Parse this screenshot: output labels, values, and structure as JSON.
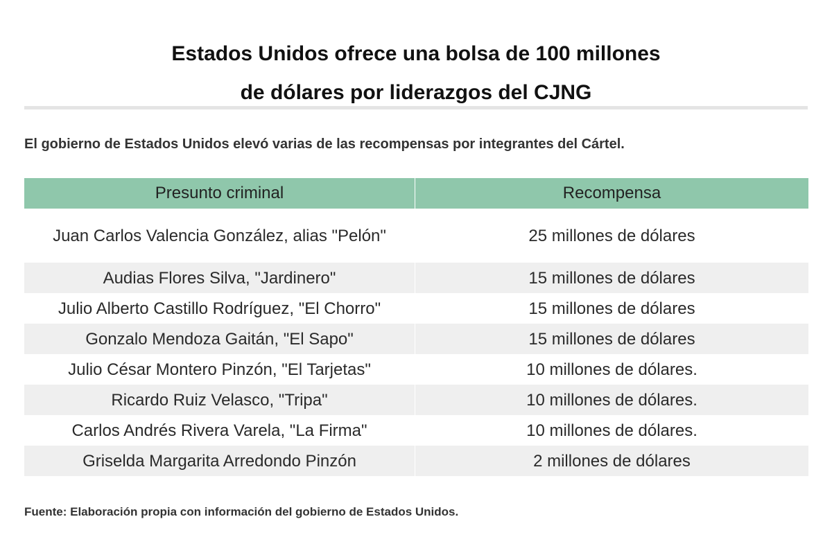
{
  "title": {
    "line1": "Estados Unidos ofrece una bolsa de 100 millones",
    "line2": "de dólares por liderazgos del CJNG"
  },
  "subtitle": "El gobierno de Estados Unidos elevó varias de las recompensas por integrantes del Cártel.",
  "table": {
    "headers": [
      "Presunto criminal",
      "Recompensa"
    ],
    "rows": [
      {
        "name": "Juan Carlos Valencia González, alias \"Pelón\"",
        "reward": "25 millones de dólares"
      },
      {
        "name": "Audias Flores Silva, \"Jardinero\"",
        "reward": "15 millones de dólares"
      },
      {
        "name": "Julio Alberto Castillo Rodríguez, \"El Chorro\"",
        "reward": "15 millones de dólares"
      },
      {
        "name": "Gonzalo Mendoza Gaitán, \"El Sapo\"",
        "reward": "15 millones de dólares"
      },
      {
        "name": "Julio César Montero Pinzón, \"El Tarjetas\"",
        "reward": "10 millones de dólares."
      },
      {
        "name": "Ricardo Ruiz Velasco, \"Tripa\"",
        "reward": "10 millones de dólares."
      },
      {
        "name": "Carlos Andrés Rivera Varela, \"La Firma\"",
        "reward": "10 millones de dólares."
      },
      {
        "name": "Griselda Margarita Arredondo Pinzón",
        "reward": "2 millones de dólares"
      }
    ]
  },
  "source": "Fuente: Elaboración propia con información del gobierno de Estados Unidos.",
  "colors": {
    "header_bg": "#8fc7ab",
    "alt_row_bg": "#efefef",
    "divider": "#e4e4e4"
  }
}
